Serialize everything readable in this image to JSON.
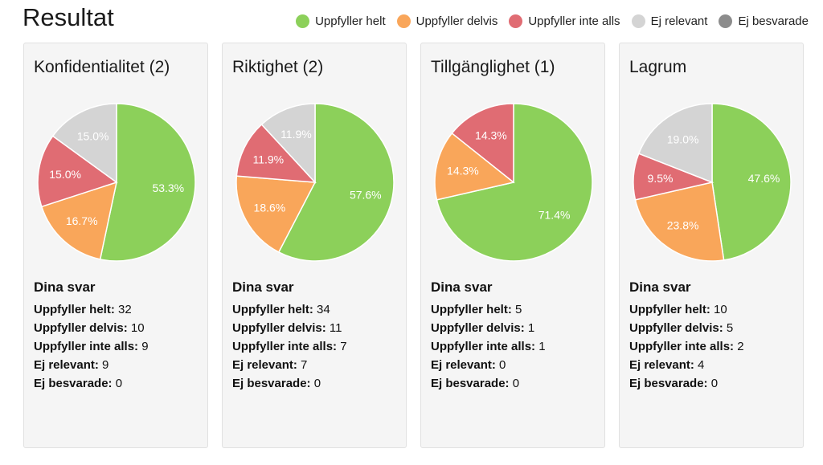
{
  "page": {
    "title": "Resultat"
  },
  "legend": [
    {
      "label": "Uppfyller helt",
      "color": "#8cd05a"
    },
    {
      "label": "Uppfyller delvis",
      "color": "#f9a65a"
    },
    {
      "label": "Uppfyller inte alls",
      "color": "#e06c73"
    },
    {
      "label": "Ej relevant",
      "color": "#d4d4d4"
    },
    {
      "label": "Ej besvarade",
      "color": "#8c8c8c"
    }
  ],
  "answers_heading": "Dina svar",
  "answer_labels": [
    "Uppfyller helt:",
    "Uppfyller delvis:",
    "Uppfyller inte alls:",
    "Ej relevant:",
    "Ej besvarade:"
  ],
  "chart_data": [
    {
      "type": "pie",
      "title": "Konfidentialitet (2)",
      "categories": [
        "Uppfyller helt",
        "Uppfyller delvis",
        "Uppfyller inte alls",
        "Ej relevant",
        "Ej besvarade"
      ],
      "values": [
        32,
        10,
        9,
        9,
        0
      ],
      "labels": [
        "53.3%",
        "16.7%",
        "15.0%",
        "15.0%",
        ""
      ]
    },
    {
      "type": "pie",
      "title": "Riktighet (2)",
      "categories": [
        "Uppfyller helt",
        "Uppfyller delvis",
        "Uppfyller inte alls",
        "Ej relevant",
        "Ej besvarade"
      ],
      "values": [
        34,
        11,
        7,
        7,
        0
      ],
      "labels": [
        "57.6%",
        "18.6%",
        "11.9%",
        "11.9%",
        ""
      ]
    },
    {
      "type": "pie",
      "title": "Tillgänglighet (1)",
      "categories": [
        "Uppfyller helt",
        "Uppfyller delvis",
        "Uppfyller inte alls",
        "Ej relevant",
        "Ej besvarade"
      ],
      "values": [
        5,
        1,
        1,
        0,
        0
      ],
      "labels": [
        "71.4%",
        "14.3%",
        "14.3%",
        "",
        ""
      ]
    },
    {
      "type": "pie",
      "title": "Lagrum",
      "categories": [
        "Uppfyller helt",
        "Uppfyller delvis",
        "Uppfyller inte alls",
        "Ej relevant",
        "Ej besvarade"
      ],
      "values": [
        10,
        5,
        2,
        4,
        0
      ],
      "labels": [
        "47.6%",
        "23.8%",
        "9.5%",
        "19.0%",
        ""
      ]
    }
  ]
}
